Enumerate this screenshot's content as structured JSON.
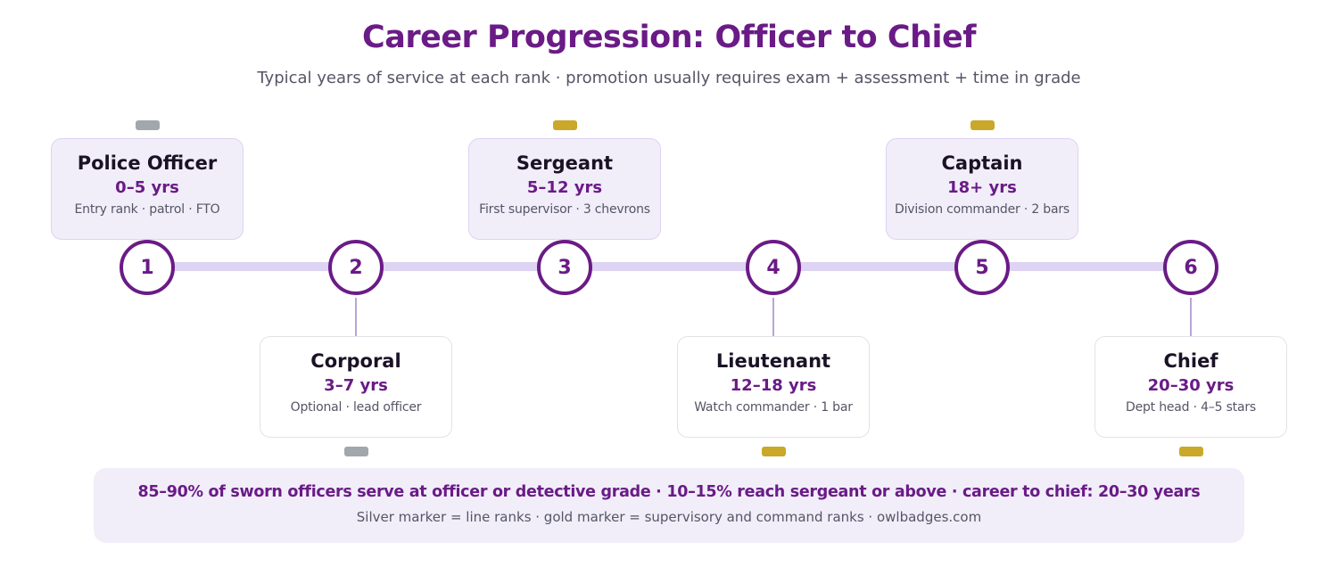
{
  "title": "Career Progression: Officer to Chief",
  "subtitle": "Typical years of service at each rank · promotion usually requires exam + assessment + time in grade",
  "colors": {
    "accent": "#6a1b86",
    "track": "#ddd3f2",
    "silver_marker": "#a2a6ad",
    "gold_marker": "#c9a82a"
  },
  "ranks": [
    {
      "step": "1",
      "name": "Police Officer",
      "years": "0–5 yrs",
      "desc": "Entry rank · patrol · FTO",
      "marker": "silver"
    },
    {
      "step": "2",
      "name": "Corporal",
      "years": "3–7 yrs",
      "desc": "Optional · lead officer",
      "marker": "silver"
    },
    {
      "step": "3",
      "name": "Sergeant",
      "years": "5–12 yrs",
      "desc": "First supervisor · 3 chevrons",
      "marker": "gold"
    },
    {
      "step": "4",
      "name": "Lieutenant",
      "years": "12–18 yrs",
      "desc": "Watch commander · 1 bar",
      "marker": "gold"
    },
    {
      "step": "5",
      "name": "Captain",
      "years": "18+ yrs",
      "desc": "Division commander · 2 bars",
      "marker": "gold"
    },
    {
      "step": "6",
      "name": "Chief",
      "years": "20–30 yrs",
      "desc": "Dept head · 4–5 stars",
      "marker": "gold"
    }
  ],
  "footer": {
    "stat": "85–90% of sworn officers serve at officer or detective grade · 10–15% reach sergeant or above · career to chief: 20–30 years",
    "note": "Silver marker = line ranks · gold marker = supervisory and command ranks · owlbadges.com"
  }
}
